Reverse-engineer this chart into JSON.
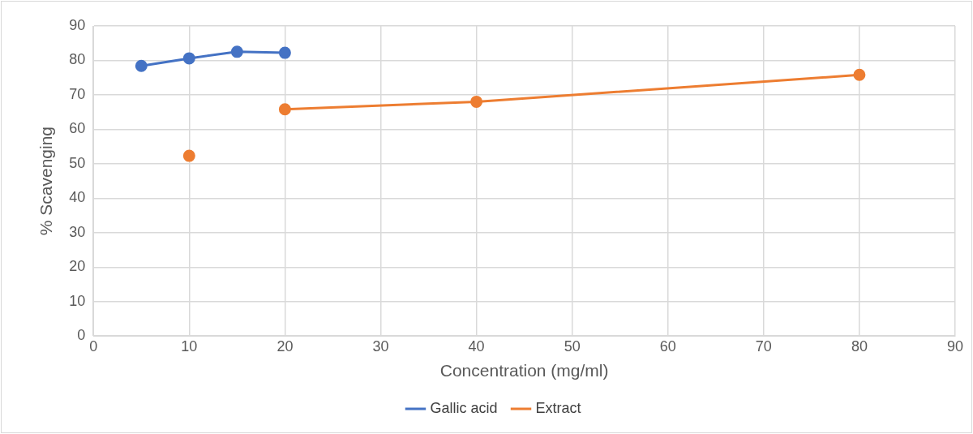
{
  "chart_data": {
    "type": "line",
    "xlabel": "Concentration (mg/ml)",
    "ylabel": "% Scavenging",
    "xlim": [
      0,
      90
    ],
    "xticks": [
      0,
      10,
      20,
      30,
      40,
      50,
      60,
      70,
      80,
      90
    ],
    "ylim": [
      0,
      90
    ],
    "yticks": [
      0,
      10,
      20,
      30,
      40,
      50,
      60,
      70,
      80,
      90
    ],
    "grid": true,
    "legend": "bottom",
    "marker": "circle",
    "line_style": "solid",
    "series": [
      {
        "name": "Gallic acid",
        "color": "#4472c4",
        "x": [
          5,
          10,
          15,
          20
        ],
        "values": [
          78.4,
          80.6,
          82.5,
          82.2
        ]
      },
      {
        "name": "Extract",
        "color": "#ed7d31",
        "x": [
          10,
          15,
          20,
          40,
          80
        ],
        "values": [
          52.3,
          null,
          65.8,
          68.0,
          75.8
        ]
      }
    ]
  }
}
